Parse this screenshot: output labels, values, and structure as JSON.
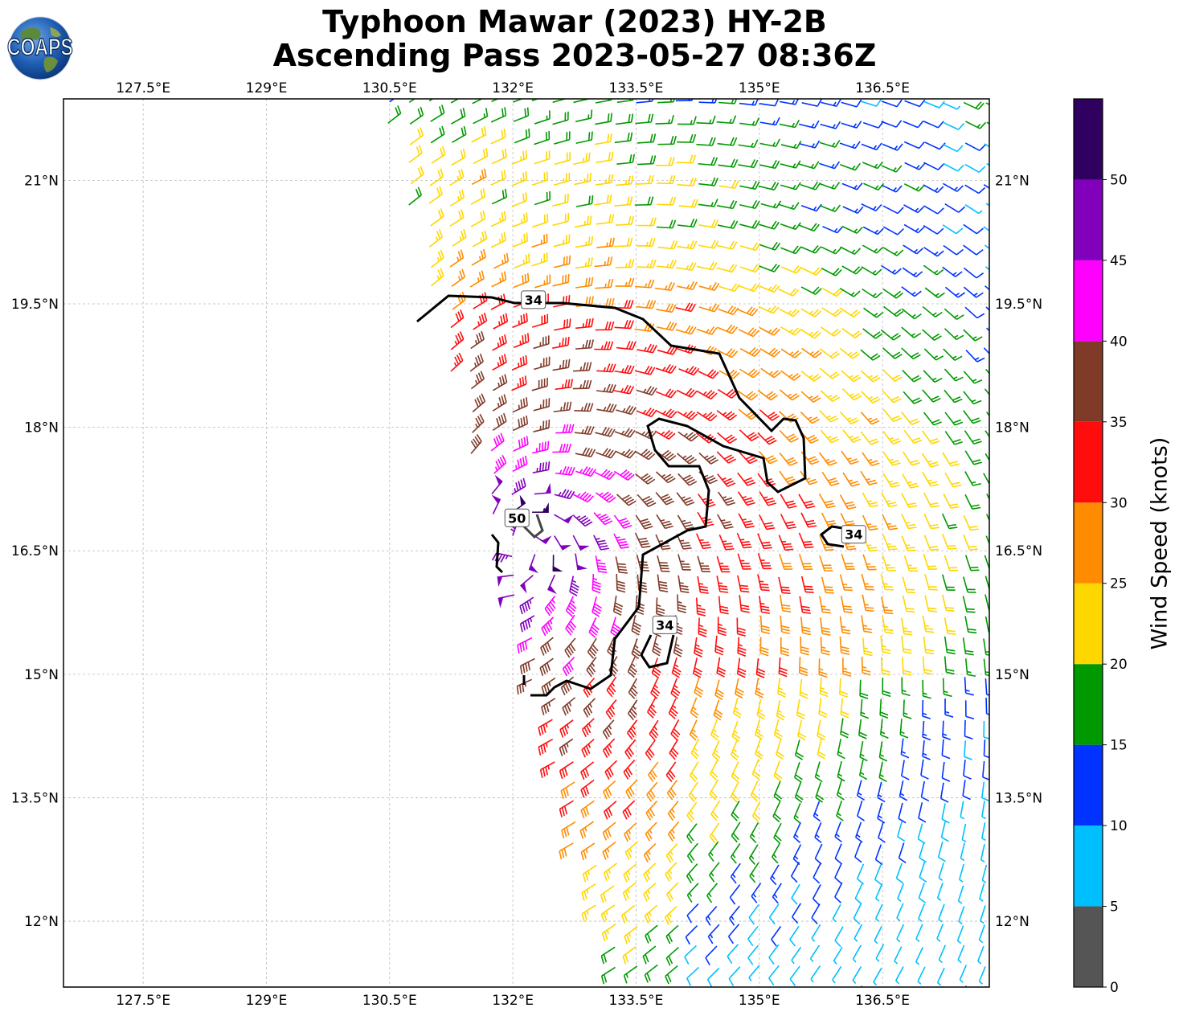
{
  "title": {
    "line1": "Typhoon Mawar (2023) HY-2B",
    "line2": "Ascending Pass 2023-05-27 08:36Z"
  },
  "logo": {
    "text": "COAPS"
  },
  "map": {
    "lon_ticks": [
      {
        "value": 127.5,
        "label": "127.5°E"
      },
      {
        "value": 129.0,
        "label": "129°E"
      },
      {
        "value": 130.5,
        "label": "130.5°E"
      },
      {
        "value": 132.0,
        "label": "132°E"
      },
      {
        "value": 133.5,
        "label": "133.5°E"
      },
      {
        "value": 135.0,
        "label": "135°E"
      },
      {
        "value": 136.5,
        "label": "136.5°E"
      }
    ],
    "lat_ticks": [
      {
        "value": 21.0,
        "label": "21°N"
      },
      {
        "value": 19.5,
        "label": "19.5°N"
      },
      {
        "value": 18.0,
        "label": "18°N"
      },
      {
        "value": 16.5,
        "label": "16.5°N"
      },
      {
        "value": 15.0,
        "label": "15°N"
      },
      {
        "value": 13.5,
        "label": "13.5°N"
      },
      {
        "value": 12.0,
        "label": "12°N"
      }
    ],
    "lon_range": [
      126.53,
      137.8
    ],
    "lat_range": [
      11.2,
      21.99
    ],
    "grid": true,
    "storm_center": {
      "lon": 132.1,
      "lat": 16.6
    },
    "contour_labels": [
      {
        "text": "34",
        "lon": 132.25,
        "lat": 19.55
      },
      {
        "text": "50",
        "lon": 132.05,
        "lat": 16.9
      },
      {
        "text": "34",
        "lon": 136.15,
        "lat": 16.7
      },
      {
        "text": "34",
        "lon": 133.85,
        "lat": 15.6
      }
    ]
  },
  "colorbar": {
    "label": "Wind Speed (knots)",
    "bins": [
      {
        "min": 0,
        "max": 5,
        "color": "#555555"
      },
      {
        "min": 5,
        "max": 10,
        "color": "#00bfff"
      },
      {
        "min": 10,
        "max": 15,
        "color": "#0033ff"
      },
      {
        "min": 15,
        "max": 20,
        "color": "#009900"
      },
      {
        "min": 20,
        "max": 25,
        "color": "#ffd700"
      },
      {
        "min": 25,
        "max": 30,
        "color": "#ff8c00"
      },
      {
        "min": 30,
        "max": 35,
        "color": "#ff0d0d"
      },
      {
        "min": 35,
        "max": 40,
        "color": "#803a28"
      },
      {
        "min": 40,
        "max": 45,
        "color": "#ff00ff"
      },
      {
        "min": 45,
        "max": 50,
        "color": "#8000bb"
      },
      {
        "min": 50,
        "max": 55,
        "color": "#300060"
      }
    ],
    "ticks": [
      {
        "value": 0,
        "label": "0"
      },
      {
        "value": 5,
        "label": "5"
      },
      {
        "value": 10,
        "label": "10"
      },
      {
        "value": 15,
        "label": "15"
      },
      {
        "value": 20,
        "label": "20"
      },
      {
        "value": 25,
        "label": "25"
      },
      {
        "value": 30,
        "label": "30"
      },
      {
        "value": 35,
        "label": "35"
      },
      {
        "value": 40,
        "label": "40"
      },
      {
        "value": 45,
        "label": "45"
      },
      {
        "value": 50,
        "label": "50"
      }
    ]
  }
}
